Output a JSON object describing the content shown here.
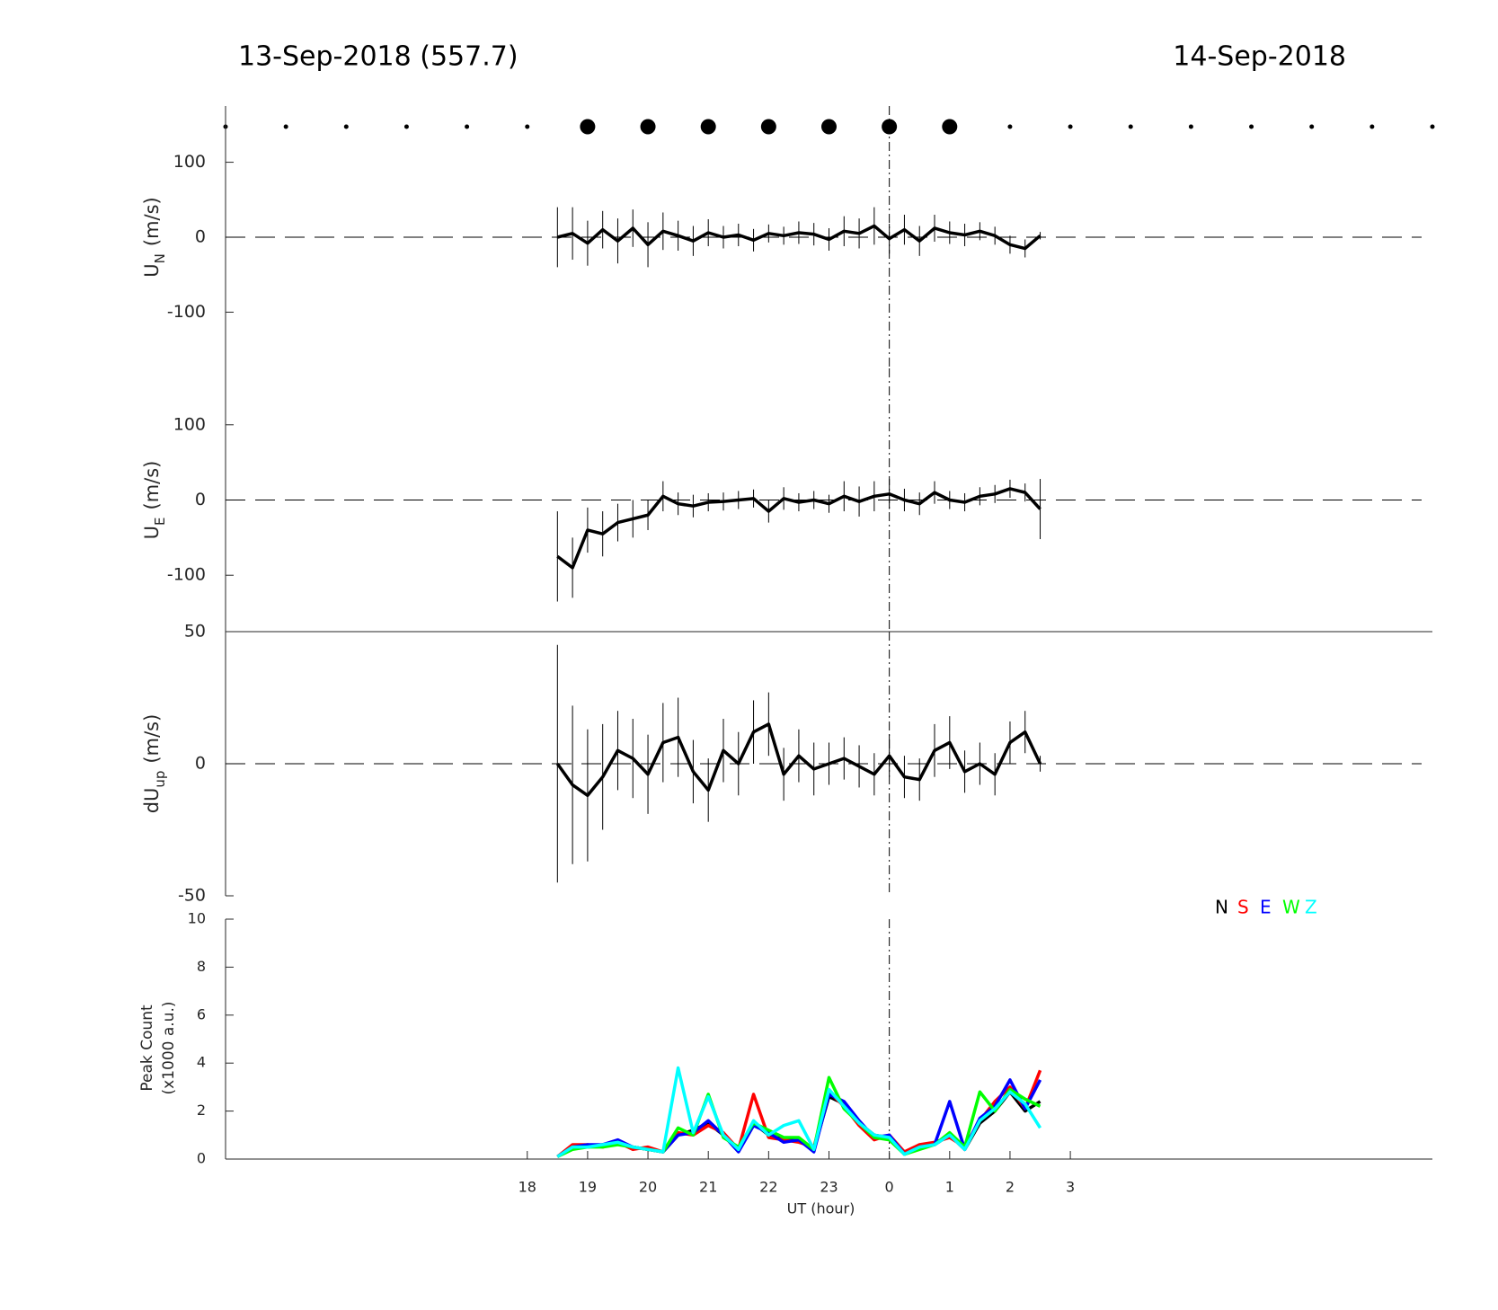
{
  "header": {
    "left_title": "13-Sep-2018 (557.7)",
    "right_title": "14-Sep-2018"
  },
  "chart_data": [
    {
      "type": "errorline",
      "ylabel": "U",
      "ylabel_sub": "N",
      "ylabel_unit": "(m/s)",
      "xlim": [
        13,
        33
      ],
      "ylim": [
        -175,
        175
      ],
      "yticks": [
        -100,
        0,
        100
      ],
      "vline": 24,
      "color": "#000000",
      "x": [
        18.5,
        18.75,
        19,
        19.25,
        19.5,
        19.75,
        20,
        20.25,
        20.5,
        20.75,
        21,
        21.25,
        21.5,
        21.75,
        22,
        22.25,
        22.5,
        22.75,
        23,
        23.25,
        23.5,
        23.75,
        24,
        24.25,
        24.5,
        24.75,
        25,
        25.25,
        25.5,
        25.75,
        26,
        26.25,
        26.5
      ],
      "values": [
        0,
        5,
        -8,
        10,
        -5,
        12,
        -10,
        8,
        2,
        -5,
        6,
        0,
        3,
        -4,
        5,
        2,
        6,
        4,
        -3,
        8,
        5,
        15,
        -2,
        10,
        -5,
        12,
        6,
        3,
        8,
        2,
        -10,
        -15,
        2
      ],
      "errors": [
        40,
        35,
        30,
        25,
        30,
        25,
        30,
        25,
        20,
        20,
        18,
        15,
        15,
        15,
        12,
        12,
        15,
        15,
        15,
        20,
        20,
        25,
        20,
        20,
        20,
        18,
        15,
        15,
        12,
        12,
        12,
        12,
        5
      ]
    },
    {
      "type": "errorline",
      "ylabel": "U",
      "ylabel_sub": "E",
      "ylabel_unit": "(m/s)",
      "xlim": [
        13,
        33
      ],
      "ylim": [
        -175,
        175
      ],
      "yticks": [
        -100,
        0,
        100
      ],
      "vline": 24,
      "color": "#000000",
      "x": [
        18.5,
        18.75,
        19,
        19.25,
        19.5,
        19.75,
        20,
        20.25,
        20.5,
        20.75,
        21,
        21.25,
        21.5,
        21.75,
        22,
        22.25,
        22.5,
        22.75,
        23,
        23.25,
        23.5,
        23.75,
        24,
        24.25,
        24.5,
        24.75,
        25,
        25.25,
        25.5,
        25.75,
        26,
        26.25,
        26.5
      ],
      "values": [
        -75,
        -90,
        -40,
        -45,
        -30,
        -25,
        -20,
        5,
        -5,
        -8,
        -3,
        -2,
        0,
        2,
        -15,
        2,
        -3,
        0,
        -5,
        5,
        -2,
        5,
        8,
        0,
        -5,
        10,
        0,
        -3,
        5,
        8,
        15,
        10,
        -12
      ],
      "errors": [
        60,
        40,
        30,
        30,
        25,
        25,
        20,
        20,
        15,
        15,
        12,
        12,
        12,
        12,
        15,
        15,
        12,
        12,
        12,
        20,
        20,
        20,
        20,
        15,
        15,
        15,
        12,
        12,
        12,
        12,
        12,
        12,
        40
      ]
    },
    {
      "type": "errorline",
      "ylabel": "dU",
      "ylabel_sub": "up",
      "ylabel_unit": "(m/s)",
      "xlim": [
        13,
        33
      ],
      "ylim": [
        -50,
        50
      ],
      "yticks": [
        -50,
        0,
        50
      ],
      "vline": 24,
      "color": "#000000",
      "x": [
        18.5,
        18.75,
        19,
        19.25,
        19.5,
        19.75,
        20,
        20.25,
        20.5,
        20.75,
        21,
        21.25,
        21.5,
        21.75,
        22,
        22.25,
        22.5,
        22.75,
        23,
        23.25,
        23.5,
        23.75,
        24,
        24.25,
        24.5,
        24.75,
        25,
        25.25,
        25.5,
        25.75,
        26,
        26.25,
        26.5
      ],
      "values": [
        0,
        -8,
        -12,
        -5,
        5,
        2,
        -4,
        8,
        10,
        -3,
        -10,
        5,
        0,
        12,
        15,
        -4,
        3,
        -2,
        0,
        2,
        -1,
        -4,
        3,
        -5,
        -6,
        5,
        8,
        -3,
        0,
        -4,
        8,
        12,
        0
      ],
      "errors": [
        45,
        30,
        25,
        20,
        15,
        15,
        15,
        15,
        15,
        12,
        12,
        12,
        12,
        12,
        12,
        10,
        10,
        10,
        8,
        8,
        8,
        8,
        8,
        8,
        8,
        10,
        10,
        8,
        8,
        8,
        8,
        8,
        3
      ]
    },
    {
      "type": "line",
      "ylabel": "Peak Count",
      "ylabel2": "(x1000 a.u.)",
      "xlabel": "UT (hour)",
      "xlim": [
        13,
        33
      ],
      "ylim": [
        0,
        10
      ],
      "yticks": [
        0,
        2,
        4,
        6,
        8,
        10
      ],
      "vline": 24,
      "legend": "upper right",
      "xticks": [
        18,
        19,
        20,
        21,
        22,
        23,
        {
          "value": 24,
          "label": "0"
        },
        {
          "value": 25,
          "label": "1"
        },
        {
          "value": 26,
          "label": "2"
        },
        {
          "value": 27,
          "label": "3"
        }
      ],
      "x": [
        18.5,
        18.75,
        19,
        19.25,
        19.5,
        19.75,
        20,
        20.25,
        20.5,
        20.75,
        21,
        21.25,
        21.5,
        21.75,
        22,
        22.25,
        22.5,
        22.75,
        23,
        23.25,
        23.5,
        23.75,
        24,
        24.25,
        24.5,
        24.75,
        25,
        25.25,
        25.5,
        25.75,
        26,
        26.25,
        26.5
      ],
      "series": [
        {
          "name": "N",
          "color": "#000000",
          "values": [
            0.1,
            0.5,
            0.5,
            0.6,
            0.7,
            0.5,
            0.4,
            0.3,
            1.0,
            1.2,
            1.5,
            1.0,
            0.4,
            1.5,
            1.0,
            0.8,
            0.8,
            0.4,
            2.6,
            2.3,
            1.5,
            1.0,
            0.9,
            0.2,
            0.5,
            0.6,
            1.0,
            0.4,
            1.5,
            2.0,
            2.8,
            2.0,
            2.4
          ]
        },
        {
          "name": "S",
          "color": "#ff0000",
          "values": [
            0.1,
            0.6,
            0.6,
            0.5,
            0.7,
            0.4,
            0.5,
            0.3,
            1.1,
            1.0,
            1.4,
            1.1,
            0.4,
            2.7,
            0.9,
            0.8,
            0.7,
            0.5,
            2.8,
            2.2,
            1.4,
            0.8,
            1.0,
            0.3,
            0.6,
            0.7,
            0.9,
            0.5,
            1.6,
            2.4,
            3.0,
            2.1,
            3.7
          ]
        },
        {
          "name": "E",
          "color": "#0000ff",
          "values": [
            0.1,
            0.5,
            0.6,
            0.6,
            0.8,
            0.5,
            0.4,
            0.3,
            1.0,
            1.1,
            1.6,
            1.0,
            0.3,
            1.4,
            1.1,
            0.7,
            0.8,
            0.3,
            2.7,
            2.4,
            1.6,
            0.9,
            1.0,
            0.2,
            0.5,
            0.6,
            2.4,
            0.4,
            1.7,
            2.2,
            3.3,
            2.1,
            3.3
          ]
        },
        {
          "name": "W",
          "color": "#00ff00",
          "values": [
            0.1,
            0.4,
            0.5,
            0.5,
            0.6,
            0.5,
            0.4,
            0.3,
            1.3,
            1.0,
            2.7,
            0.9,
            0.5,
            1.5,
            1.2,
            0.9,
            0.9,
            0.4,
            3.4,
            2.1,
            1.5,
            0.9,
            0.8,
            0.2,
            0.4,
            0.6,
            1.1,
            0.5,
            2.8,
            2.0,
            2.9,
            2.5,
            2.2
          ]
        },
        {
          "name": "Z",
          "color": "#00ffff",
          "values": [
            0.1,
            0.5,
            0.5,
            0.6,
            0.7,
            0.5,
            0.4,
            0.3,
            3.8,
            1.1,
            2.6,
            1.0,
            0.4,
            1.6,
            1.0,
            1.4,
            1.6,
            0.4,
            2.9,
            2.2,
            1.5,
            1.0,
            0.9,
            0.2,
            0.5,
            0.6,
            1.0,
            0.4,
            1.6,
            2.1,
            2.8,
            2.3,
            1.3
          ]
        }
      ]
    }
  ]
}
